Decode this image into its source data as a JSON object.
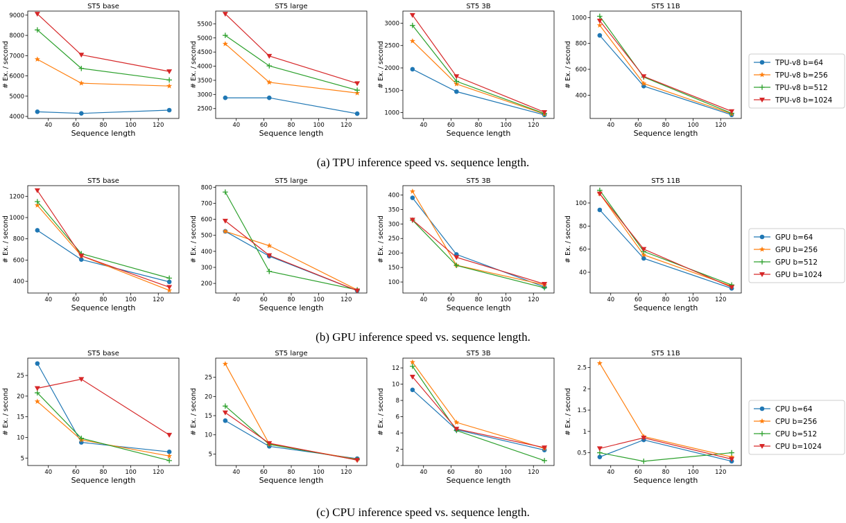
{
  "colors": {
    "b64": "#1f77b4",
    "b256": "#ff7f0e",
    "b512": "#2ca02c",
    "b1024": "#d62728"
  },
  "panel_xlabel": "Sequence length",
  "panel_ylabel": "# Ex. / second",
  "rows": [
    {
      "caption": "(a) TPU inference speed vs. sequence length.",
      "legend": [
        "TPU-v8 b=64",
        "TPU-v8 b=256",
        "TPU-v8 b=512",
        "TPU-v8 b=1024"
      ]
    },
    {
      "caption": "(b) GPU inference speed vs. sequence length.",
      "legend": [
        "GPU b=64",
        "GPU b=256",
        "GPU b=512",
        "GPU b=1024"
      ]
    },
    {
      "caption": "(c) CPU inference speed vs. sequence length.",
      "legend": [
        "CPU b=64",
        "CPU b=256",
        "CPU b=512",
        "CPU b=1024"
      ]
    }
  ],
  "chart_data": [
    {
      "type": "line",
      "title": "ST5 base",
      "xlabel": "Sequence length",
      "ylabel": "# Ex. / second",
      "x": [
        32,
        64,
        128
      ],
      "xlim": [
        25,
        135
      ],
      "ylim": [
        3900,
        9200
      ],
      "xticks": [
        40,
        60,
        80,
        100,
        120
      ],
      "yticks": [
        4000,
        5000,
        6000,
        7000,
        8000,
        9000
      ],
      "series": [
        {
          "name": "TPU-v8 b=64",
          "values": [
            4230,
            4150,
            4310
          ]
        },
        {
          "name": "TPU-v8 b=256",
          "values": [
            6820,
            5640,
            5500
          ]
        },
        {
          "name": "TPU-v8 b=512",
          "values": [
            8270,
            6370,
            5800
          ]
        },
        {
          "name": "TPU-v8 b=1024",
          "values": [
            9060,
            7040,
            6220
          ]
        }
      ]
    },
    {
      "type": "line",
      "title": "ST5 large",
      "xlabel": "Sequence length",
      "ylabel": "# Ex. / second",
      "x": [
        32,
        64,
        128
      ],
      "xlim": [
        25,
        135
      ],
      "ylim": [
        2150,
        5950
      ],
      "xticks": [
        40,
        60,
        80,
        100,
        120
      ],
      "yticks": [
        2500,
        3000,
        3500,
        4000,
        4500,
        5000,
        5500
      ],
      "series": [
        {
          "name": "TPU-v8 b=64",
          "values": [
            2880,
            2880,
            2320
          ]
        },
        {
          "name": "TPU-v8 b=256",
          "values": [
            4790,
            3430,
            3050
          ]
        },
        {
          "name": "TPU-v8 b=512",
          "values": [
            5090,
            4010,
            3150
          ]
        },
        {
          "name": "TPU-v8 b=1024",
          "values": [
            5850,
            4360,
            3390
          ]
        }
      ]
    },
    {
      "type": "line",
      "title": "ST5 3B",
      "xlabel": "Sequence length",
      "ylabel": "# Ex. / second",
      "x": [
        32,
        64,
        128
      ],
      "xlim": [
        25,
        135
      ],
      "ylim": [
        870,
        3270
      ],
      "xticks": [
        40,
        60,
        80,
        100,
        120
      ],
      "yticks": [
        1000,
        1500,
        2000,
        2500,
        3000
      ],
      "series": [
        {
          "name": "TPU-v8 b=64",
          "values": [
            1970,
            1470,
            950
          ]
        },
        {
          "name": "TPU-v8 b=256",
          "values": [
            2600,
            1640,
            970
          ]
        },
        {
          "name": "TPU-v8 b=512",
          "values": [
            2950,
            1700,
            980
          ]
        },
        {
          "name": "TPU-v8 b=1024",
          "values": [
            3180,
            1810,
            1010
          ]
        }
      ]
    },
    {
      "type": "line",
      "title": "ST5 11B",
      "xlabel": "Sequence length",
      "ylabel": "# Ex. / second",
      "x": [
        32,
        64,
        128
      ],
      "xlim": [
        25,
        135
      ],
      "ylim": [
        220,
        1050
      ],
      "xticks": [
        40,
        60,
        80,
        100,
        120
      ],
      "yticks": [
        400,
        600,
        800,
        1000
      ],
      "series": [
        {
          "name": "TPU-v8 b=64",
          "values": [
            862,
            470,
            248
          ]
        },
        {
          "name": "TPU-v8 b=256",
          "values": [
            940,
            490,
            256
          ]
        },
        {
          "name": "TPU-v8 b=512",
          "values": [
            1010,
            540,
            260
          ]
        },
        {
          "name": "TPU-v8 b=1024",
          "values": [
            975,
            545,
            275
          ]
        }
      ]
    },
    {
      "type": "line",
      "title": "ST5 base",
      "xlabel": "Sequence length",
      "ylabel": "# Ex. / second",
      "x": [
        32,
        64,
        128
      ],
      "xlim": [
        25,
        135
      ],
      "ylim": [
        290,
        1300
      ],
      "xticks": [
        40,
        60,
        80,
        100,
        120
      ],
      "yticks": [
        400,
        600,
        800,
        1000,
        1200
      ],
      "series": [
        {
          "name": "GPU b=64",
          "values": [
            880,
            605,
            395
          ]
        },
        {
          "name": "GPU b=256",
          "values": [
            1115,
            640,
            315
          ]
        },
        {
          "name": "GPU b=512",
          "values": [
            1150,
            660,
            430
          ]
        },
        {
          "name": "GPU b=1024",
          "values": [
            1255,
            640,
            345
          ]
        }
      ]
    },
    {
      "type": "line",
      "title": "ST5 large",
      "xlabel": "Sequence length",
      "ylabel": "# Ex. / second",
      "x": [
        32,
        64,
        128
      ],
      "xlim": [
        25,
        135
      ],
      "ylim": [
        140,
        810
      ],
      "xticks": [
        40,
        60,
        80,
        100,
        120
      ],
      "yticks": [
        200,
        300,
        400,
        500,
        600,
        700,
        800
      ],
      "series": [
        {
          "name": "GPU b=64",
          "values": [
            525,
            370,
            155
          ]
        },
        {
          "name": "GPU b=256",
          "values": [
            525,
            435,
            160
          ]
        },
        {
          "name": "GPU b=512",
          "values": [
            770,
            275,
            160
          ]
        },
        {
          "name": "GPU b=1024",
          "values": [
            590,
            375,
            155
          ]
        }
      ]
    },
    {
      "type": "line",
      "title": "ST5 3B",
      "xlabel": "Sequence length",
      "ylabel": "# Ex. / second",
      "x": [
        32,
        64,
        128
      ],
      "xlim": [
        25,
        135
      ],
      "ylim": [
        62,
        432
      ],
      "xticks": [
        40,
        60,
        80,
        100,
        120
      ],
      "yticks": [
        100,
        150,
        200,
        250,
        300,
        350,
        400
      ],
      "series": [
        {
          "name": "GPU b=64",
          "values": [
            390,
            195,
            83
          ]
        },
        {
          "name": "GPU b=256",
          "values": [
            412,
            158,
            90
          ]
        },
        {
          "name": "GPU b=512",
          "values": [
            313,
            157,
            80
          ]
        },
        {
          "name": "GPU b=1024",
          "values": [
            314,
            185,
            93
          ]
        }
      ]
    },
    {
      "type": "line",
      "title": "ST5 11B",
      "xlabel": "Sequence length",
      "ylabel": "# Ex. / second",
      "x": [
        32,
        64,
        128
      ],
      "xlim": [
        25,
        135
      ],
      "ylim": [
        22,
        115
      ],
      "xticks": [
        40,
        60,
        80,
        100,
        120
      ],
      "yticks": [
        40,
        60,
        80,
        100
      ],
      "series": [
        {
          "name": "GPU b=64",
          "values": [
            94,
            52,
            26
          ]
        },
        {
          "name": "GPU b=256",
          "values": [
            108,
            55,
            28
          ]
        },
        {
          "name": "GPU b=512",
          "values": [
            111,
            58,
            29
          ]
        },
        {
          "name": "GPU b=1024",
          "values": [
            108,
            60,
            27
          ]
        }
      ]
    },
    {
      "type": "line",
      "title": "ST5 base",
      "xlabel": "Sequence length",
      "ylabel": "# Ex. / second",
      "x": [
        32,
        64,
        128
      ],
      "xlim": [
        25,
        135
      ],
      "ylim": [
        3.2,
        29.2
      ],
      "xticks": [
        40,
        60,
        80,
        100,
        120
      ],
      "yticks": [
        5,
        10,
        15,
        20,
        25
      ],
      "series": [
        {
          "name": "CPU b=64",
          "values": [
            27.9,
            8.8,
            6.5
          ]
        },
        {
          "name": "CPU b=256",
          "values": [
            18.7,
            9.4,
            5.5
          ]
        },
        {
          "name": "CPU b=512",
          "values": [
            20.8,
            9.8,
            4.4
          ]
        },
        {
          "name": "CPU b=1024",
          "values": [
            21.9,
            24.1,
            10.6
          ]
        }
      ]
    },
    {
      "type": "line",
      "title": "ST5 large",
      "xlabel": "Sequence length",
      "ylabel": "# Ex. / second",
      "x": [
        32,
        64,
        128
      ],
      "xlim": [
        25,
        135
      ],
      "ylim": [
        2.0,
        30.0
      ],
      "xticks": [
        40,
        60,
        80,
        100,
        120
      ],
      "yticks": [
        5,
        10,
        15,
        20,
        25
      ],
      "series": [
        {
          "name": "CPU b=64",
          "values": [
            13.7,
            7.0,
            3.8
          ]
        },
        {
          "name": "CPU b=256",
          "values": [
            28.5,
            7.6,
            3.6
          ]
        },
        {
          "name": "CPU b=512",
          "values": [
            17.5,
            7.5,
            3.5
          ]
        },
        {
          "name": "CPU b=1024",
          "values": [
            15.8,
            7.8,
            3.4
          ]
        }
      ]
    },
    {
      "type": "line",
      "title": "ST5 3B",
      "xlabel": "Sequence length",
      "ylabel": "# Ex. / second",
      "x": [
        32,
        64,
        128
      ],
      "xlim": [
        25,
        135
      ],
      "ylim": [
        0,
        13.2
      ],
      "xticks": [
        40,
        60,
        80,
        100,
        120
      ],
      "yticks": [
        0,
        2,
        4,
        6,
        8,
        10,
        12
      ],
      "series": [
        {
          "name": "CPU b=64",
          "values": [
            9.3,
            4.4,
            1.9
          ]
        },
        {
          "name": "CPU b=256",
          "values": [
            12.7,
            5.3,
            2.1
          ]
        },
        {
          "name": "CPU b=512",
          "values": [
            12.2,
            4.3,
            0.6
          ]
        },
        {
          "name": "CPU b=1024",
          "values": [
            10.9,
            4.5,
            2.2
          ]
        }
      ]
    },
    {
      "type": "line",
      "title": "ST5 11B",
      "xlabel": "Sequence length",
      "ylabel": "# Ex. / second",
      "x": [
        32,
        64,
        128
      ],
      "xlim": [
        25,
        135
      ],
      "ylim": [
        0.2,
        2.72
      ],
      "xticks": [
        40,
        60,
        80,
        100,
        120
      ],
      "yticks": [
        0.5,
        1.0,
        1.5,
        2.0,
        2.5
      ],
      "series": [
        {
          "name": "CPU b=64",
          "values": [
            0.4,
            0.8,
            0.3
          ]
        },
        {
          "name": "CPU b=256",
          "values": [
            2.6,
            0.88,
            0.4
          ]
        },
        {
          "name": "CPU b=512",
          "values": [
            0.5,
            0.3,
            0.5
          ]
        },
        {
          "name": "CPU b=1024",
          "values": [
            0.6,
            0.85,
            0.35
          ]
        }
      ]
    }
  ]
}
